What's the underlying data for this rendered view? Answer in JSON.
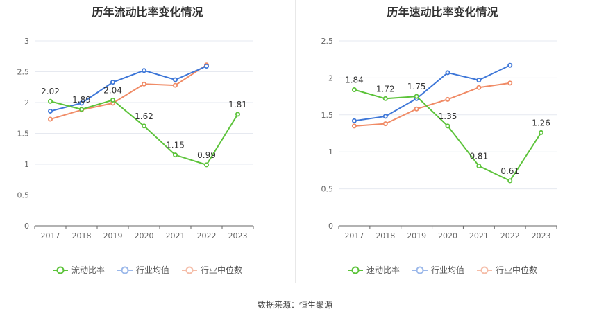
{
  "source": "数据来源：恒生聚源",
  "colors": {
    "main": "#5cc33a",
    "avg": "#3e77d8",
    "median": "#f08b66"
  },
  "chart_data": [
    {
      "type": "line",
      "title": "历年流动比率变化情况",
      "categories": [
        "2017",
        "2018",
        "2019",
        "2020",
        "2021",
        "2022",
        "2023"
      ],
      "ylim": [
        0,
        3
      ],
      "yticks": [
        "0",
        "0.5",
        "1",
        "1.5",
        "2",
        "2.5",
        "3"
      ],
      "grid": true,
      "legend_position": "bottom",
      "series": [
        {
          "name": "流动比率",
          "key": "main",
          "values": [
            2.02,
            1.89,
            2.04,
            1.62,
            1.15,
            0.99,
            1.81
          ],
          "labels": [
            "2.02",
            "1.89",
            "2.04",
            "1.62",
            "1.15",
            "0.99",
            "1.81"
          ]
        },
        {
          "name": "行业均值",
          "key": "avg",
          "values": [
            1.86,
            1.99,
            2.33,
            2.52,
            2.37,
            2.59,
            null
          ]
        },
        {
          "name": "行业中位数",
          "key": "median",
          "values": [
            1.73,
            1.88,
            1.99,
            2.3,
            2.28,
            2.61,
            null
          ]
        }
      ]
    },
    {
      "type": "line",
      "title": "历年速动比率变化情况",
      "categories": [
        "2017",
        "2018",
        "2019",
        "2020",
        "2021",
        "2022",
        "2023"
      ],
      "ylim": [
        0,
        2.5
      ],
      "yticks": [
        "0",
        "0.5",
        "1",
        "1.5",
        "2",
        "2.5"
      ],
      "grid": true,
      "legend_position": "bottom",
      "series": [
        {
          "name": "速动比率",
          "key": "main",
          "values": [
            1.84,
            1.72,
            1.75,
            1.35,
            0.81,
            0.61,
            1.26
          ],
          "labels": [
            "1.84",
            "1.72",
            "1.75",
            "1.35",
            "0.81",
            "0.61",
            "1.26"
          ]
        },
        {
          "name": "行业均值",
          "key": "avg",
          "values": [
            1.42,
            1.48,
            1.72,
            2.07,
            1.97,
            2.17,
            null
          ]
        },
        {
          "name": "行业中位数",
          "key": "median",
          "values": [
            1.35,
            1.38,
            1.58,
            1.71,
            1.87,
            1.93,
            null
          ]
        }
      ]
    }
  ]
}
